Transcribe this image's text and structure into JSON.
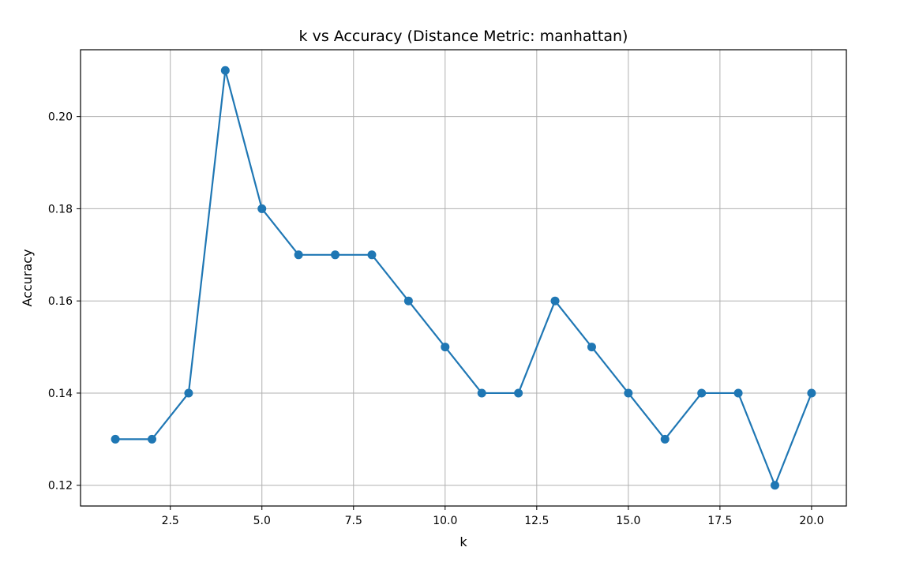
{
  "chart_data": {
    "type": "line",
    "title": "k vs Accuracy (Distance Metric: manhattan)",
    "xlabel": "k",
    "ylabel": "Accuracy",
    "xlim": [
      0.05,
      20.95
    ],
    "ylim": [
      0.1155,
      0.2145
    ],
    "xticks": [
      2.5,
      5.0,
      7.5,
      10.0,
      12.5,
      15.0,
      17.5,
      20.0
    ],
    "xtick_labels": [
      "2.5",
      "5.0",
      "7.5",
      "10.0",
      "12.5",
      "15.0",
      "17.5",
      "20.0"
    ],
    "yticks": [
      0.12,
      0.14,
      0.16,
      0.18,
      0.2
    ],
    "ytick_labels": [
      "0.12",
      "0.14",
      "0.16",
      "0.18",
      "0.20"
    ],
    "grid": true,
    "series": [
      {
        "color": "#1f77b4",
        "marker": "circle",
        "x": [
          1,
          2,
          3,
          4,
          5,
          6,
          7,
          8,
          9,
          10,
          11,
          12,
          13,
          14,
          15,
          16,
          17,
          18,
          19,
          20
        ],
        "y": [
          0.13,
          0.13,
          0.14,
          0.21,
          0.18,
          0.17,
          0.17,
          0.17,
          0.16,
          0.15,
          0.14,
          0.14,
          0.16,
          0.15,
          0.14,
          0.13,
          0.14,
          0.14,
          0.12,
          0.14
        ]
      }
    ]
  }
}
